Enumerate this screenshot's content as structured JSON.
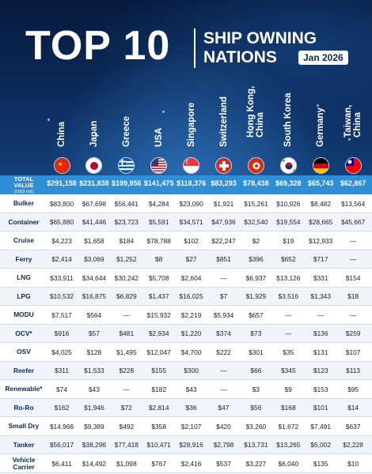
{
  "title": {
    "main": "TOP 10",
    "sub_line1": "SHIP OWNING",
    "sub_line2": "NATIONS",
    "date": "Jan 2026"
  },
  "countries": [
    {
      "name": "China",
      "flag": "china-flag"
    },
    {
      "name": "Japan",
      "flag": "japan-flag"
    },
    {
      "name": "Greece",
      "flag": "greece-flag"
    },
    {
      "name": "USA",
      "flag": "usa-flag"
    },
    {
      "name": "Singapore",
      "flag": "singapore-flag"
    },
    {
      "name": "Switzerland",
      "flag": "switzerland-flag"
    },
    {
      "name": "Hong Kong,\nChina",
      "flag": "hong-kong-flag"
    },
    {
      "name": "South Korea",
      "flag": "south-korea-flag"
    },
    {
      "name": "Germany",
      "flag": "germany-flag"
    },
    {
      "name": "Taiwan,\nChina",
      "flag": "taiwan-flag"
    }
  ],
  "total": {
    "label_line1": "TOTAL",
    "label_line2": "VALUE",
    "label_unit": "(USD mil)",
    "values": [
      "$291,158",
      "$231,838",
      "$199,956",
      "$141,475",
      "$118,376",
      "$83,293",
      "$78,438",
      "$69,328",
      "$65,743",
      "$62,867"
    ]
  },
  "rows": [
    {
      "label": "Bulker",
      "values": [
        "$83,800",
        "$67,698",
        "$56,441",
        "$4,284",
        "$23,090",
        "$1,921",
        "$15,261",
        "$10,926",
        "$8,482",
        "$13,564"
      ]
    },
    {
      "label": "Container",
      "values": [
        "$65,880",
        "$41,446",
        "$23,723",
        "$5,591",
        "$34,571",
        "$47,936",
        "$32,540",
        "$19,554",
        "$28,665",
        "$45,667"
      ]
    },
    {
      "label": "Cruise",
      "values": [
        "$4,223",
        "$1,658",
        "$184",
        "$78,788",
        "$102",
        "$22,247",
        "$2",
        "$19",
        "$12,933",
        "—"
      ]
    },
    {
      "label": "Ferry",
      "values": [
        "$2,414",
        "$3,069",
        "$1,252",
        "$8",
        "$27",
        "$851",
        "$396",
        "$652",
        "$717",
        "—"
      ]
    },
    {
      "label": "LNG",
      "values": [
        "$33,911",
        "$34,644",
        "$30,242",
        "$5,708",
        "$2,604",
        "—",
        "$6,937",
        "$13,126",
        "$331",
        "$154"
      ]
    },
    {
      "label": "LPG",
      "values": [
        "$10,532",
        "$16,875",
        "$6,829",
        "$1,437",
        "$16,025",
        "$7",
        "$1,929",
        "$3,516",
        "$1,343",
        "$18"
      ]
    },
    {
      "label": "MODU",
      "values": [
        "$7,517",
        "$564",
        "—",
        "$15,932",
        "$2,219",
        "$5,934",
        "$657",
        "—",
        "—",
        "—"
      ]
    },
    {
      "label": "OCV*",
      "values": [
        "$916",
        "$57",
        "$481",
        "$2,934",
        "$1,220",
        "$374",
        "$73",
        "—",
        "$136",
        "$259"
      ]
    },
    {
      "label": "OSV",
      "values": [
        "$4,025",
        "$128",
        "$1,495",
        "$12,047",
        "$4,700",
        "$222",
        "$301",
        "$35",
        "$131",
        "$107"
      ]
    },
    {
      "label": "Reefer",
      "values": [
        "$311",
        "$1,533",
        "$228",
        "$155",
        "$300",
        "—",
        "$66",
        "$345",
        "$123",
        "$113"
      ]
    },
    {
      "label": "Renewable*",
      "values": [
        "$74",
        "$43",
        "—",
        "$182",
        "$43",
        "—",
        "$3",
        "$9",
        "$153",
        "$95"
      ]
    },
    {
      "label": "Ro-Ro",
      "values": [
        "$162",
        "$1,946",
        "$72",
        "$2,814",
        "$36",
        "$47",
        "$56",
        "$168",
        "$101",
        "$14"
      ]
    },
    {
      "label": "Small Dry",
      "values": [
        "$14,966",
        "$9,389",
        "$492",
        "$358",
        "$2,107",
        "$420",
        "$3,260",
        "$1,672",
        "$7,491",
        "$637"
      ]
    },
    {
      "label": "Tanker",
      "values": [
        "$56,017",
        "$38,296",
        "$77,418",
        "$10,471",
        "$28,916",
        "$2,798",
        "$13,731",
        "$13,265",
        "$5,002",
        "$2,228"
      ]
    },
    {
      "label": "Vehicle\nCarrier",
      "values": [
        "$6,411",
        "$14,492",
        "$1,098",
        "$767",
        "$2,416",
        "$537",
        "$3,227",
        "$6,040",
        "$135",
        "$10"
      ]
    }
  ]
}
